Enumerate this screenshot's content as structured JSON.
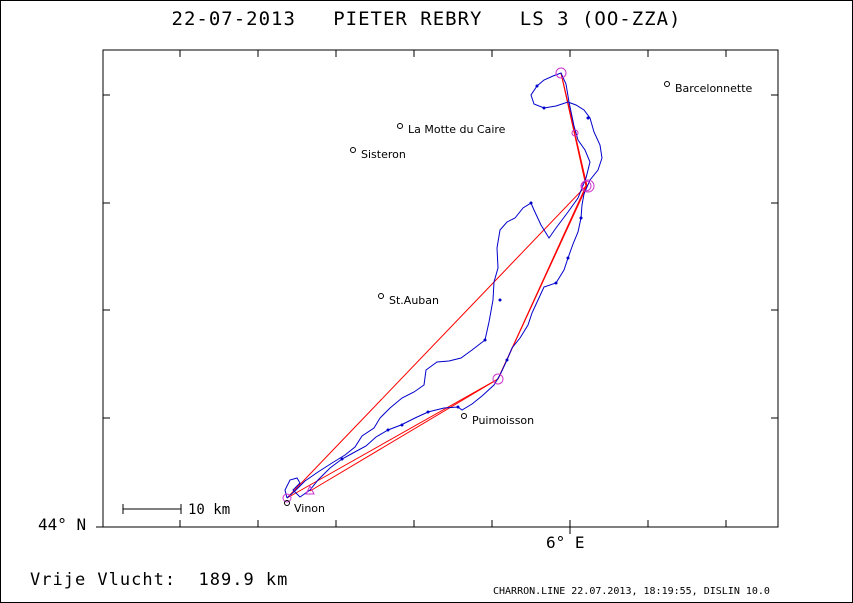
{
  "title": "22-07-2013   PIETER REBRY   LS 3 (OO-ZZA)",
  "axes": {
    "lat_label": "44° N",
    "lon_label": "6° E"
  },
  "scale_bar": {
    "label": "10 km"
  },
  "distance": "Vrije Vlucht:  189.9 km",
  "footer": "CHARRON.LINE 22.07.2013, 18:19:55, DISLIN 10.0",
  "places": [
    {
      "name": "Barcelonnette"
    },
    {
      "name": "La Motte du Caire"
    },
    {
      "name": "Sisteron"
    },
    {
      "name": "St.Auban"
    },
    {
      "name": "Puimoisson"
    },
    {
      "name": "Vinon"
    }
  ],
  "colors": {
    "track": "#0000cc",
    "task_line": "#ff0000",
    "turnpoint": "#cc33cc",
    "frame": "#000000"
  }
}
